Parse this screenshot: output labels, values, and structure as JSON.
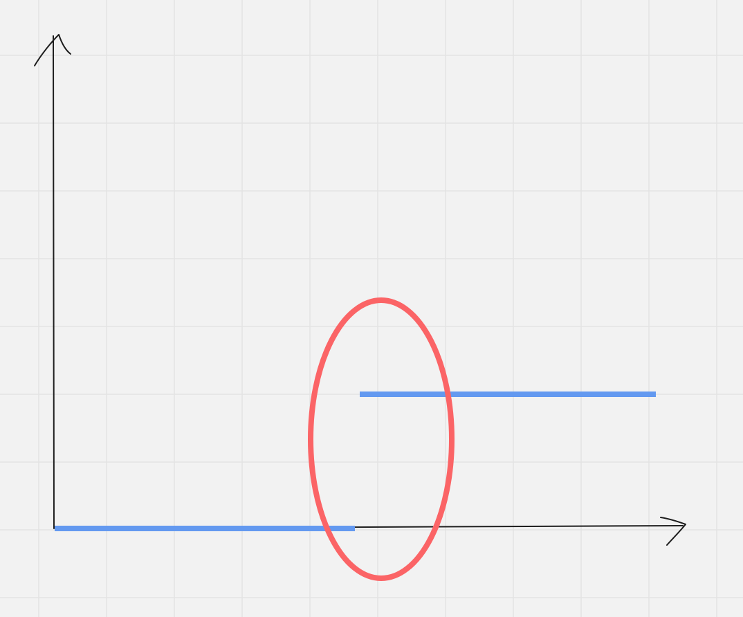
{
  "canvas": {
    "background": "#f2f2f2",
    "grid_color": "#e3e3e3"
  },
  "diagram": {
    "description_type": "hand-drawn step function sketch",
    "axes_color": "#1e1e1e",
    "step_color": "#6399f0",
    "highlight_color": "#fb6466",
    "elements": [
      {
        "name": "y-axis",
        "kind": "arrow"
      },
      {
        "name": "x-axis",
        "kind": "arrow"
      },
      {
        "name": "step-low-segment",
        "kind": "line"
      },
      {
        "name": "step-high-segment",
        "kind": "line"
      },
      {
        "name": "discontinuity-highlight",
        "kind": "ellipse"
      }
    ]
  }
}
